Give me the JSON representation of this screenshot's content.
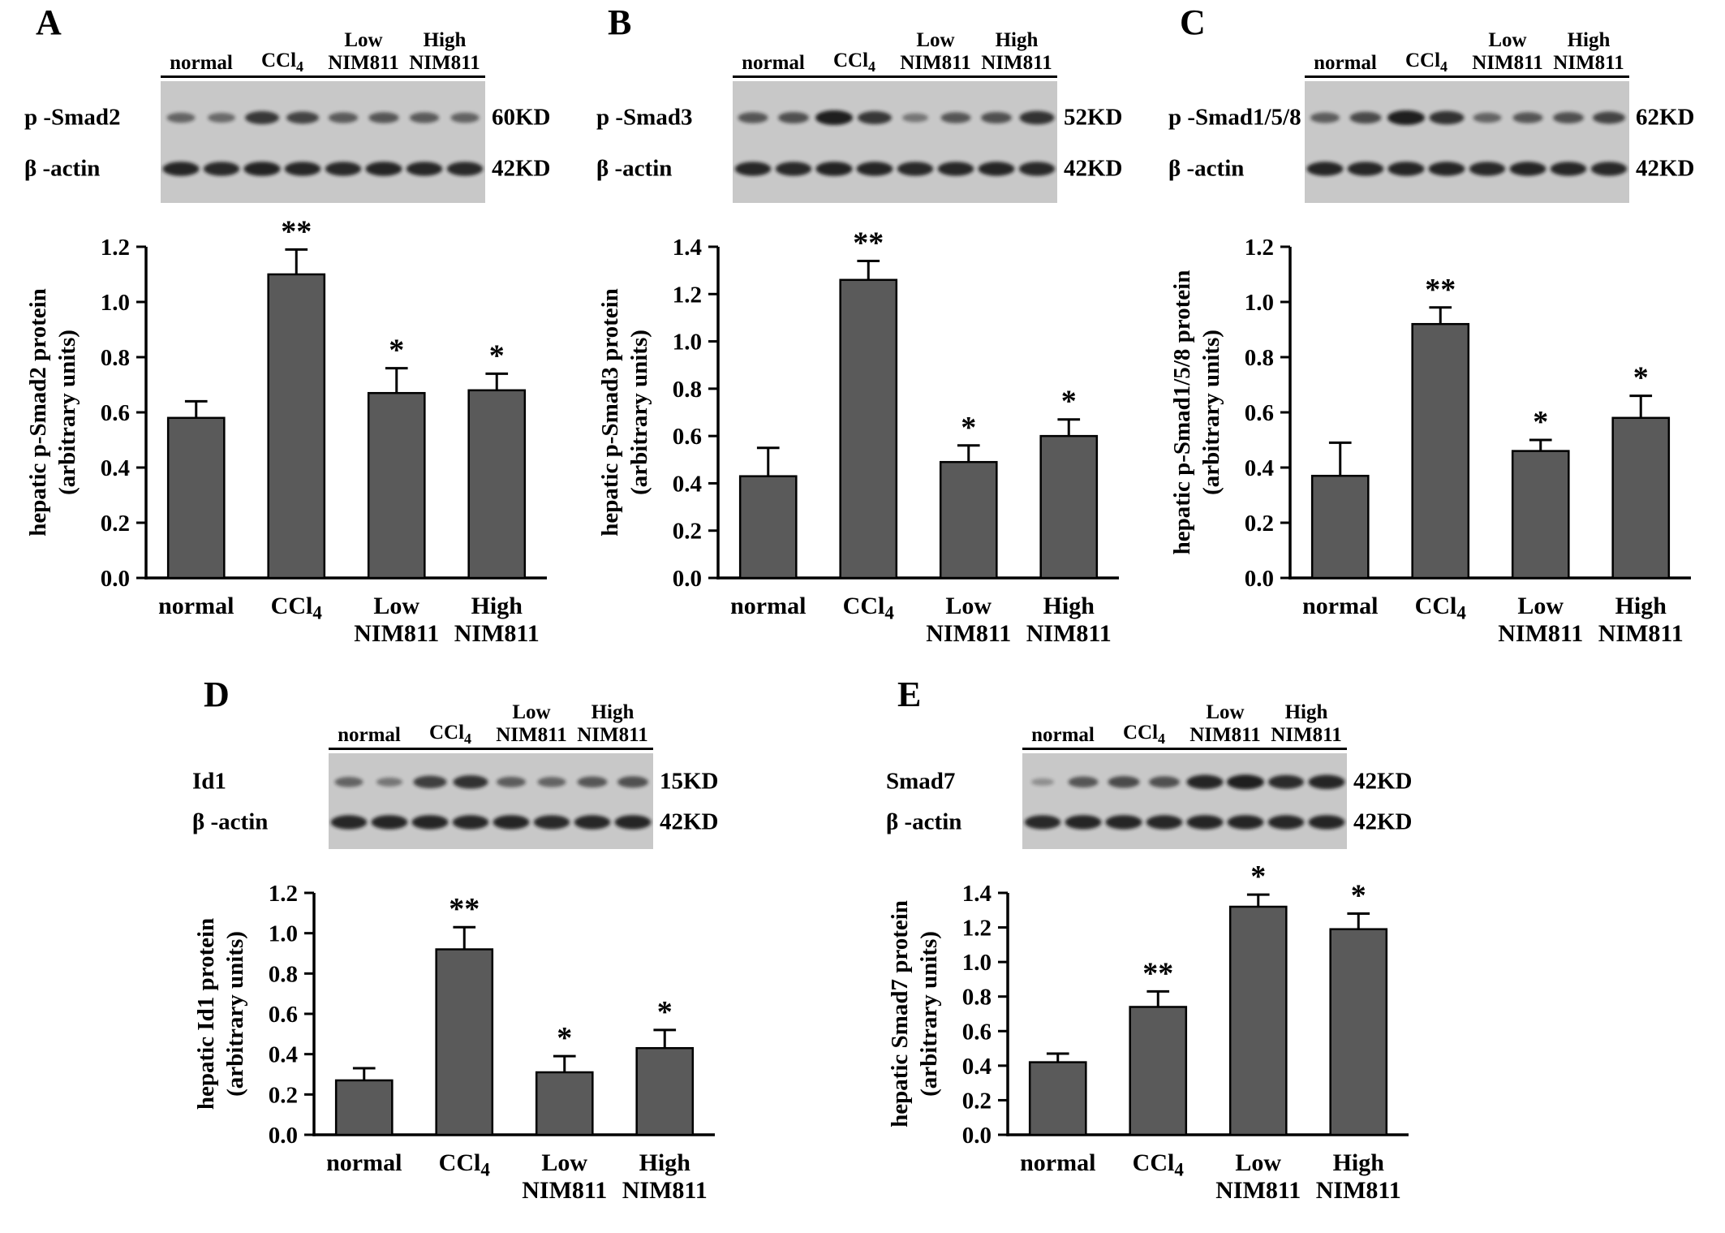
{
  "figure": {
    "background": "#ffffff",
    "bar_fill": "#5a5a5a",
    "axis_color": "#000000",
    "film_color": "#c8c8c8",
    "band_color": "#141414",
    "lane_groups": [
      [
        "normal"
      ],
      [
        "CCl4"
      ],
      [
        "Low",
        "NIM811"
      ],
      [
        "High",
        "NIM811"
      ]
    ]
  },
  "panels": [
    {
      "letter": "A",
      "size": "top",
      "chart_index": 0,
      "blot": {
        "rows": [
          {
            "label": "p -Smad2",
            "kd": "60KD",
            "bands": [
              0.45,
              0.4,
              0.8,
              0.7,
              0.52,
              0.56,
              0.52,
              0.46
            ]
          },
          {
            "label": "β -actin",
            "kd": "42KD",
            "bands": [
              0.95,
              0.92,
              0.96,
              0.93,
              0.92,
              0.95,
              0.93,
              0.92
            ]
          }
        ]
      }
    },
    {
      "letter": "B",
      "size": "top",
      "chart_index": 1,
      "blot": {
        "rows": [
          {
            "label": "p -Smad3",
            "kd": "52KD",
            "bands": [
              0.55,
              0.6,
              1.0,
              0.8,
              0.3,
              0.55,
              0.6,
              0.85
            ]
          },
          {
            "label": "β -actin",
            "kd": "42KD",
            "bands": [
              0.93,
              0.92,
              0.96,
              0.94,
              0.92,
              0.93,
              0.94,
              0.92
            ]
          }
        ]
      }
    },
    {
      "letter": "C",
      "size": "top",
      "chart_index": 2,
      "blot": {
        "rows": [
          {
            "label": "p -Smad1/5/8",
            "kd": "62KD",
            "bands": [
              0.5,
              0.65,
              1.0,
              0.85,
              0.45,
              0.55,
              0.6,
              0.7
            ]
          },
          {
            "label": "β -actin",
            "kd": "42KD",
            "bands": [
              0.94,
              0.93,
              0.95,
              0.94,
              0.92,
              0.94,
              0.93,
              0.92
            ]
          }
        ]
      }
    },
    {
      "letter": "D",
      "size": "bottom",
      "chart_index": 3,
      "blot": {
        "rows": [
          {
            "label": "Id1",
            "kd": "15KD",
            "bands": [
              0.45,
              0.3,
              0.75,
              0.85,
              0.5,
              0.45,
              0.55,
              0.6
            ]
          },
          {
            "label": "β -actin",
            "kd": "42KD",
            "bands": [
              0.93,
              0.94,
              0.95,
              0.93,
              0.94,
              0.92,
              0.93,
              0.94
            ]
          }
        ]
      }
    },
    {
      "letter": "E",
      "size": "bottom",
      "chart_index": 4,
      "blot": {
        "rows": [
          {
            "label": "Smad7",
            "kd": "42KD",
            "bands": [
              0.1,
              0.55,
              0.65,
              0.6,
              0.95,
              1.0,
              0.9,
              0.95
            ]
          },
          {
            "label": "β -actin",
            "kd": "42KD",
            "bands": [
              0.92,
              0.94,
              0.95,
              0.93,
              0.95,
              0.94,
              0.93,
              0.94
            ]
          }
        ]
      }
    }
  ],
  "chart_data": [
    {
      "type": "bar",
      "panel": "A",
      "title": "",
      "categories": [
        [
          "normal"
        ],
        [
          "CCl4"
        ],
        [
          "Low",
          "NIM811"
        ],
        [
          "High",
          "NIM811"
        ]
      ],
      "values": [
        0.58,
        1.1,
        0.67,
        0.68
      ],
      "errors": [
        0.06,
        0.09,
        0.09,
        0.06
      ],
      "significance": [
        "",
        "**",
        "*",
        "*"
      ],
      "xlabel": "",
      "ylabel_lines": [
        "hepatic p-Smad2 protein",
        "(arbitrary units)"
      ],
      "ylim": [
        0,
        1.2
      ],
      "ytick_step": 0.2,
      "grid": false,
      "legend": false
    },
    {
      "type": "bar",
      "panel": "B",
      "title": "",
      "categories": [
        [
          "normal"
        ],
        [
          "CCl4"
        ],
        [
          "Low",
          "NIM811"
        ],
        [
          "High",
          "NIM811"
        ]
      ],
      "values": [
        0.43,
        1.26,
        0.49,
        0.6
      ],
      "errors": [
        0.12,
        0.08,
        0.07,
        0.07
      ],
      "significance": [
        "",
        "**",
        "*",
        "*"
      ],
      "xlabel": "",
      "ylabel_lines": [
        "hepatic p-Smad3 protein",
        "(arbitrary units)"
      ],
      "ylim": [
        0,
        1.4
      ],
      "ytick_step": 0.2,
      "grid": false,
      "legend": false
    },
    {
      "type": "bar",
      "panel": "C",
      "title": "",
      "categories": [
        [
          "normal"
        ],
        [
          "CCl4"
        ],
        [
          "Low",
          "NIM811"
        ],
        [
          "High",
          "NIM811"
        ]
      ],
      "values": [
        0.37,
        0.92,
        0.46,
        0.58
      ],
      "errors": [
        0.12,
        0.06,
        0.04,
        0.08
      ],
      "significance": [
        "",
        "**",
        "*",
        "*"
      ],
      "xlabel": "",
      "ylabel_lines": [
        "hepatic p-Smad1/5/8 protein",
        "(arbitrary units)"
      ],
      "ylim": [
        0,
        1.2
      ],
      "ytick_step": 0.2,
      "grid": false,
      "legend": false
    },
    {
      "type": "bar",
      "panel": "D",
      "title": "",
      "categories": [
        [
          "normal"
        ],
        [
          "CCl4"
        ],
        [
          "Low",
          "NIM811"
        ],
        [
          "High",
          "NIM811"
        ]
      ],
      "values": [
        0.27,
        0.92,
        0.31,
        0.43
      ],
      "errors": [
        0.06,
        0.11,
        0.08,
        0.09
      ],
      "significance": [
        "",
        "**",
        "*",
        "*"
      ],
      "xlabel": "",
      "ylabel_lines": [
        "hepatic Id1 protein",
        "(arbitrary units)"
      ],
      "ylim": [
        0,
        1.2
      ],
      "ytick_step": 0.2,
      "grid": false,
      "legend": false
    },
    {
      "type": "bar",
      "panel": "E",
      "title": "",
      "categories": [
        [
          "normal"
        ],
        [
          "CCl4"
        ],
        [
          "Low",
          "NIM811"
        ],
        [
          "High",
          "NIM811"
        ]
      ],
      "values": [
        0.42,
        0.74,
        1.32,
        1.19
      ],
      "errors": [
        0.05,
        0.09,
        0.07,
        0.09
      ],
      "significance": [
        "",
        "**",
        "*",
        "*"
      ],
      "xlabel": "",
      "ylabel_lines": [
        "hepatic Smad7 protein",
        "(arbitrary units)"
      ],
      "ylim": [
        0,
        1.4
      ],
      "ytick_step": 0.2,
      "grid": false,
      "legend": false
    }
  ]
}
